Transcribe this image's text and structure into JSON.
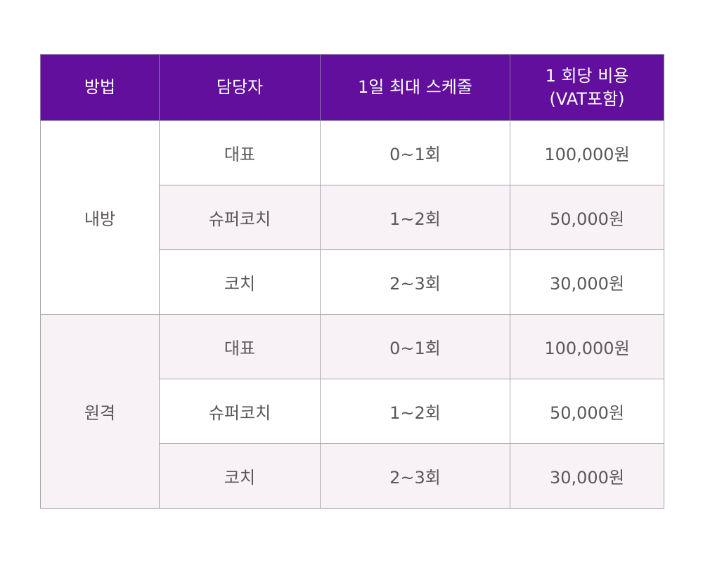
{
  "table": {
    "headers": {
      "method": "방법",
      "person": "담당자",
      "schedule": "1일 최대 스케줄",
      "cost_line1": "1 회당 비용",
      "cost_line2": "(VAT포함)"
    },
    "groups": [
      {
        "method": "내방",
        "rows": [
          {
            "person": "대표",
            "schedule": "0~1회",
            "cost": "100,000원"
          },
          {
            "person": "슈퍼코치",
            "schedule": "1~2회",
            "cost": "50,000원"
          },
          {
            "person": "코치",
            "schedule": "2~3회",
            "cost": "30,000원"
          }
        ]
      },
      {
        "method": "원격",
        "rows": [
          {
            "person": "대표",
            "schedule": "0~1회",
            "cost": "100,000원"
          },
          {
            "person": "슈퍼코치",
            "schedule": "1~2회",
            "cost": "50,000원"
          },
          {
            "person": "코치",
            "schedule": "2~3회",
            "cost": "30,000원"
          }
        ]
      }
    ]
  },
  "colors": {
    "header_bg": "#620f9e",
    "header_text": "#ffffff",
    "row_shade": "#f8f1f6",
    "body_text": "#5b5757",
    "border": "#a9a3ad"
  }
}
